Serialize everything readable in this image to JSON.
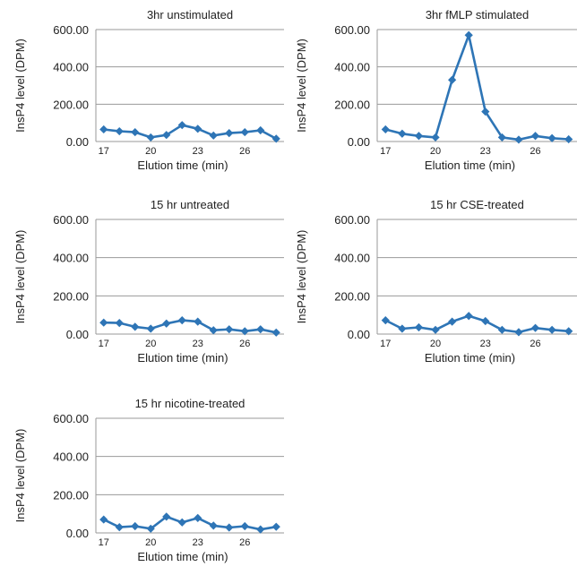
{
  "chart_data": [
    {
      "type": "line",
      "title": "3hr unstimulated",
      "xlabel": "Elution time (min)",
      "ylabel": "InsP4 level (DPM)",
      "ylim": [
        0,
        600
      ],
      "yticks": [
        "0.00",
        "200.00",
        "400.00",
        "600.00"
      ],
      "xticks": [
        "17",
        "20",
        "23",
        "26"
      ],
      "grid": "horizontal",
      "series": [
        {
          "color": "#2e75b6",
          "x": [
            17,
            18,
            19,
            20,
            21,
            22,
            23,
            24,
            25,
            26,
            27,
            28
          ],
          "y": [
            65,
            55,
            50,
            22,
            35,
            88,
            68,
            32,
            45,
            50,
            60,
            15
          ]
        }
      ]
    },
    {
      "type": "line",
      "title": "3hr fMLP stimulated",
      "xlabel": "Elution time (min)",
      "ylabel": "InsP4 level (DPM)",
      "ylim": [
        0,
        600
      ],
      "yticks": [
        "0.00",
        "200.00",
        "400.00",
        "600.00"
      ],
      "xticks": [
        "17",
        "20",
        "23",
        "26"
      ],
      "grid": "horizontal",
      "series": [
        {
          "color": "#2e75b6",
          "x": [
            17,
            18,
            19,
            20,
            21,
            22,
            23,
            24,
            25,
            26,
            27,
            28
          ],
          "y": [
            65,
            42,
            30,
            22,
            330,
            570,
            160,
            22,
            10,
            30,
            18,
            12
          ]
        }
      ]
    },
    {
      "type": "line",
      "title": "15 hr untreated",
      "xlabel": "Elution time (min)",
      "ylabel": "InsP4 level (DPM)",
      "ylim": [
        0,
        600
      ],
      "yticks": [
        "0.00",
        "200.00",
        "400.00",
        "600.00"
      ],
      "xticks": [
        "17",
        "20",
        "23",
        "26"
      ],
      "grid": "horizontal",
      "series": [
        {
          "color": "#2e75b6",
          "x": [
            17,
            18,
            19,
            20,
            21,
            22,
            23,
            24,
            25,
            26,
            27,
            28
          ],
          "y": [
            60,
            58,
            38,
            28,
            55,
            72,
            65,
            20,
            25,
            15,
            25,
            8
          ]
        }
      ]
    },
    {
      "type": "line",
      "title": "15 hr CSE-treated",
      "xlabel": "Elution time (min)",
      "ylabel": "InsP4 level (DPM)",
      "ylim": [
        0,
        600
      ],
      "yticks": [
        "0.00",
        "200.00",
        "400.00",
        "600.00"
      ],
      "xticks": [
        "17",
        "20",
        "23",
        "26"
      ],
      "grid": "horizontal",
      "series": [
        {
          "color": "#2e75b6",
          "x": [
            17,
            18,
            19,
            20,
            21,
            22,
            23,
            24,
            25,
            26,
            27,
            28
          ],
          "y": [
            72,
            28,
            35,
            22,
            65,
            95,
            68,
            22,
            10,
            32,
            22,
            15
          ]
        }
      ]
    },
    {
      "type": "line",
      "title": "15 hr nicotine-treated",
      "xlabel": "Elution time (min)",
      "ylabel": "InsP4 level (DPM)",
      "ylim": [
        0,
        600
      ],
      "yticks": [
        "0.00",
        "200.00",
        "400.00",
        "600.00"
      ],
      "xticks": [
        "17",
        "20",
        "23",
        "26"
      ],
      "grid": "horizontal",
      "series": [
        {
          "color": "#2e75b6",
          "x": [
            17,
            18,
            19,
            20,
            21,
            22,
            23,
            24,
            25,
            26,
            27,
            28
          ],
          "y": [
            70,
            30,
            35,
            22,
            85,
            55,
            78,
            38,
            28,
            35,
            18,
            32
          ]
        }
      ]
    }
  ]
}
